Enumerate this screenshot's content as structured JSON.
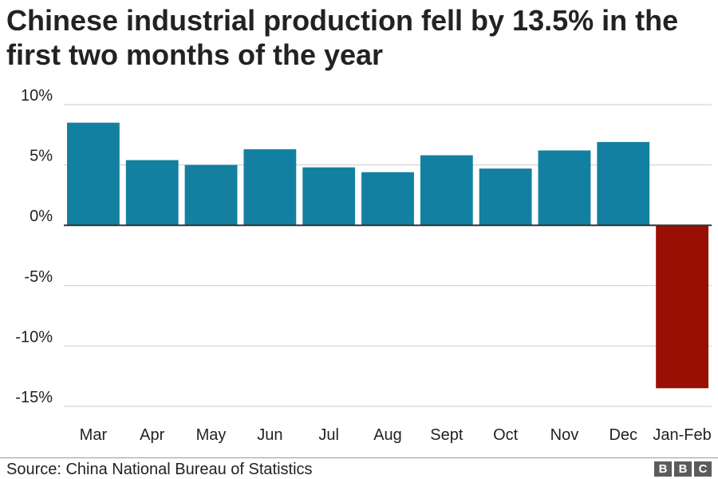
{
  "title": "Chinese industrial production fell by 13.5% in the first two months of the year",
  "source": "Source: China National Bureau of Statistics",
  "logo": [
    "B",
    "B",
    "C"
  ],
  "colors": {
    "positive": "#1380A1",
    "negative": "#990F04",
    "grid": "#cbcbcb",
    "axis": "#333333",
    "text": "#222222"
  },
  "chart_data": {
    "type": "bar",
    "title": "Chinese industrial production fell by 13.5% in the first two months of the year",
    "xlabel": "",
    "ylabel": "",
    "categories": [
      "Mar",
      "Apr",
      "May",
      "Jun",
      "Jul",
      "Aug",
      "Sept",
      "Oct",
      "Nov",
      "Dec",
      "Jan-Feb"
    ],
    "values": [
      8.5,
      5.4,
      5.0,
      6.3,
      4.8,
      4.4,
      5.8,
      4.7,
      6.2,
      6.9,
      -13.5
    ],
    "ylim": [
      -15,
      10
    ],
    "yticks": [
      10,
      5,
      0,
      -5,
      -10,
      -15
    ],
    "ytick_labels": [
      "10%",
      "5%",
      "0%",
      "-5%",
      "-10%",
      "-15%"
    ],
    "grid": true,
    "highlight_category": "Jan-Feb"
  }
}
